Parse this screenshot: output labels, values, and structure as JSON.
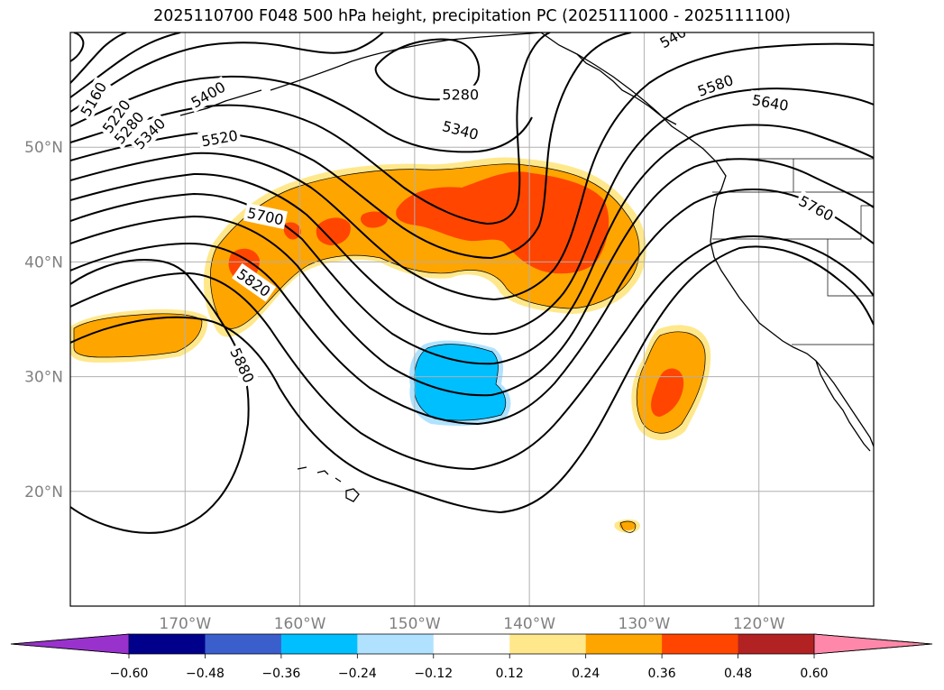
{
  "title": "2025110700 F048 500 hPa height, precipitation PC (2025111000 - 2025111100)",
  "map": {
    "lon_range": [
      -180,
      -110
    ],
    "lat_range": [
      10,
      60
    ],
    "lon_ticks": [
      {
        "value": -170,
        "label": "170°W"
      },
      {
        "value": -160,
        "label": "160°W"
      },
      {
        "value": -150,
        "label": "150°W"
      },
      {
        "value": -140,
        "label": "140°W"
      },
      {
        "value": -130,
        "label": "130°W"
      },
      {
        "value": -120,
        "label": "120°W"
      }
    ],
    "lat_ticks": [
      {
        "value": 20,
        "label": "20°N"
      },
      {
        "value": 30,
        "label": "30°N"
      },
      {
        "value": 40,
        "label": "40°N"
      },
      {
        "value": 50,
        "label": "50°N"
      }
    ],
    "grid": true
  },
  "contour_labels": [
    {
      "text": "5160",
      "lon": -178,
      "lat": 54.2,
      "rot": -60
    },
    {
      "text": "5220",
      "lon": -176,
      "lat": 52.7,
      "rot": -55
    },
    {
      "text": "5280",
      "lon": -174.9,
      "lat": 51.7,
      "rot": -50
    },
    {
      "text": "5340",
      "lon": -173.1,
      "lat": 51.2,
      "rot": -45
    },
    {
      "text": "5400",
      "lon": -168,
      "lat": 54.6,
      "rot": -30
    },
    {
      "text": "5280",
      "lon": -146,
      "lat": 54.6,
      "rot": 0
    },
    {
      "text": "5340",
      "lon": -146,
      "lat": 51.5,
      "rot": 15
    },
    {
      "text": "5520",
      "lon": -167,
      "lat": 50.8,
      "rot": -10
    },
    {
      "text": "5700",
      "lon": -163,
      "lat": 44,
      "rot": 12
    },
    {
      "text": "5820",
      "lon": -164,
      "lat": 38.2,
      "rot": 35
    },
    {
      "text": "5880",
      "lon": -165,
      "lat": 31,
      "rot": 65
    },
    {
      "text": "540",
      "lon": -127.5,
      "lat": 59.6,
      "rot": -30
    },
    {
      "text": "5580",
      "lon": -123.8,
      "lat": 55.4,
      "rot": -20
    },
    {
      "text": "5640",
      "lon": -119,
      "lat": 53.9,
      "rot": 10
    },
    {
      "text": "5760",
      "lon": -115,
      "lat": 44.7,
      "rot": 28
    }
  ],
  "shading": {
    "levels": [
      -0.6,
      -0.48,
      -0.36,
      -0.24,
      -0.12,
      0.12,
      0.24,
      0.36,
      0.48,
      0.6
    ],
    "colors": {
      "below_min": "#9932cc",
      "bins": [
        "#00008b",
        "#3a5fcd",
        "#00bfff",
        "#b0e2ff",
        "#ffffff",
        "#ffe88c",
        "#ffa500",
        "#ff4500",
        "#b22222"
      ],
      "above_max": "#ff88aa"
    }
  },
  "colorbar": {
    "tick_labels": [
      "−0.60",
      "−0.48",
      "−0.36",
      "−0.24",
      "−0.12",
      "0.12",
      "0.24",
      "0.36",
      "0.48",
      "0.60"
    ]
  }
}
